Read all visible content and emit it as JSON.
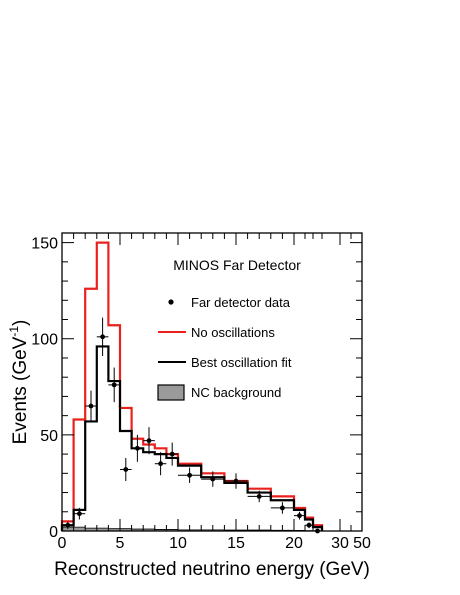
{
  "chart_data": {
    "type": "histogram",
    "annotation": "MINOS Far Detector",
    "xlabel": "Reconstructed neutrino energy (GeV)",
    "ylabel": {
      "prefix": "Events (GeV",
      "sup": "-1",
      "suffix": ")"
    },
    "x_tick_labels": [
      "0",
      "5",
      "10",
      "15",
      "20",
      "30",
      "50"
    ],
    "y_ticks": [
      0,
      50,
      100,
      150
    ],
    "ylim": [
      0,
      155
    ],
    "colors": {
      "no_oscillations": "#e8211d",
      "best_fit": "#000000",
      "data": "#000000",
      "nc_fill": "#9a9a9a"
    },
    "bin_edges": [
      0,
      1,
      2,
      3,
      4,
      5,
      6,
      7,
      8,
      9,
      10,
      12,
      14,
      16,
      18,
      20,
      22,
      24,
      26
    ],
    "no_oscillations": [
      5,
      58,
      126,
      150,
      107,
      64,
      48,
      45,
      43,
      40,
      35,
      30,
      26,
      22,
      18,
      12,
      7,
      3
    ],
    "best_oscillation_fit": [
      3,
      11,
      57,
      96,
      78,
      52,
      43,
      41,
      40,
      38,
      34,
      28,
      25,
      20,
      16,
      11,
      6,
      2
    ],
    "nc_background": [
      2,
      2,
      1.5,
      1.5,
      1.2,
      1.2,
      1,
      1,
      0.8,
      0.8,
      0.6,
      0.6,
      0.5,
      0.5,
      0.4,
      0.3,
      0.2,
      0.1
    ],
    "data_points": [
      {
        "x": 0.5,
        "y": 3,
        "yerr": 2
      },
      {
        "x": 1.5,
        "y": 9,
        "yerr": 3
      },
      {
        "x": 2.5,
        "y": 65,
        "yerr": 8
      },
      {
        "x": 3.5,
        "y": 101,
        "yerr": 10
      },
      {
        "x": 4.5,
        "y": 76,
        "yerr": 9
      },
      {
        "x": 5.5,
        "y": 32,
        "yerr": 6
      },
      {
        "x": 6.5,
        "y": 43,
        "yerr": 7
      },
      {
        "x": 7.5,
        "y": 47,
        "yerr": 7
      },
      {
        "x": 8.5,
        "y": 35,
        "yerr": 6
      },
      {
        "x": 9.5,
        "y": 40,
        "yerr": 6
      },
      {
        "x": 11,
        "y": 29,
        "yerr": 4
      },
      {
        "x": 13,
        "y": 27,
        "yerr": 4
      },
      {
        "x": 15,
        "y": 26,
        "yerr": 4
      },
      {
        "x": 17,
        "y": 18,
        "yerr": 3
      },
      {
        "x": 19,
        "y": 12,
        "yerr": 3
      },
      {
        "x": 21,
        "y": 8,
        "yerr": 2
      },
      {
        "x": 23,
        "y": 3,
        "yerr": 1.5
      },
      {
        "x": 25,
        "y": 0,
        "yerr": 0.8
      }
    ],
    "legend": [
      {
        "label": "Far detector data",
        "type": "marker"
      },
      {
        "label": "No oscillations",
        "type": "red-line"
      },
      {
        "label": "Best oscillation fit",
        "type": "black-line"
      },
      {
        "label": "NC background",
        "type": "grey-box"
      }
    ]
  }
}
